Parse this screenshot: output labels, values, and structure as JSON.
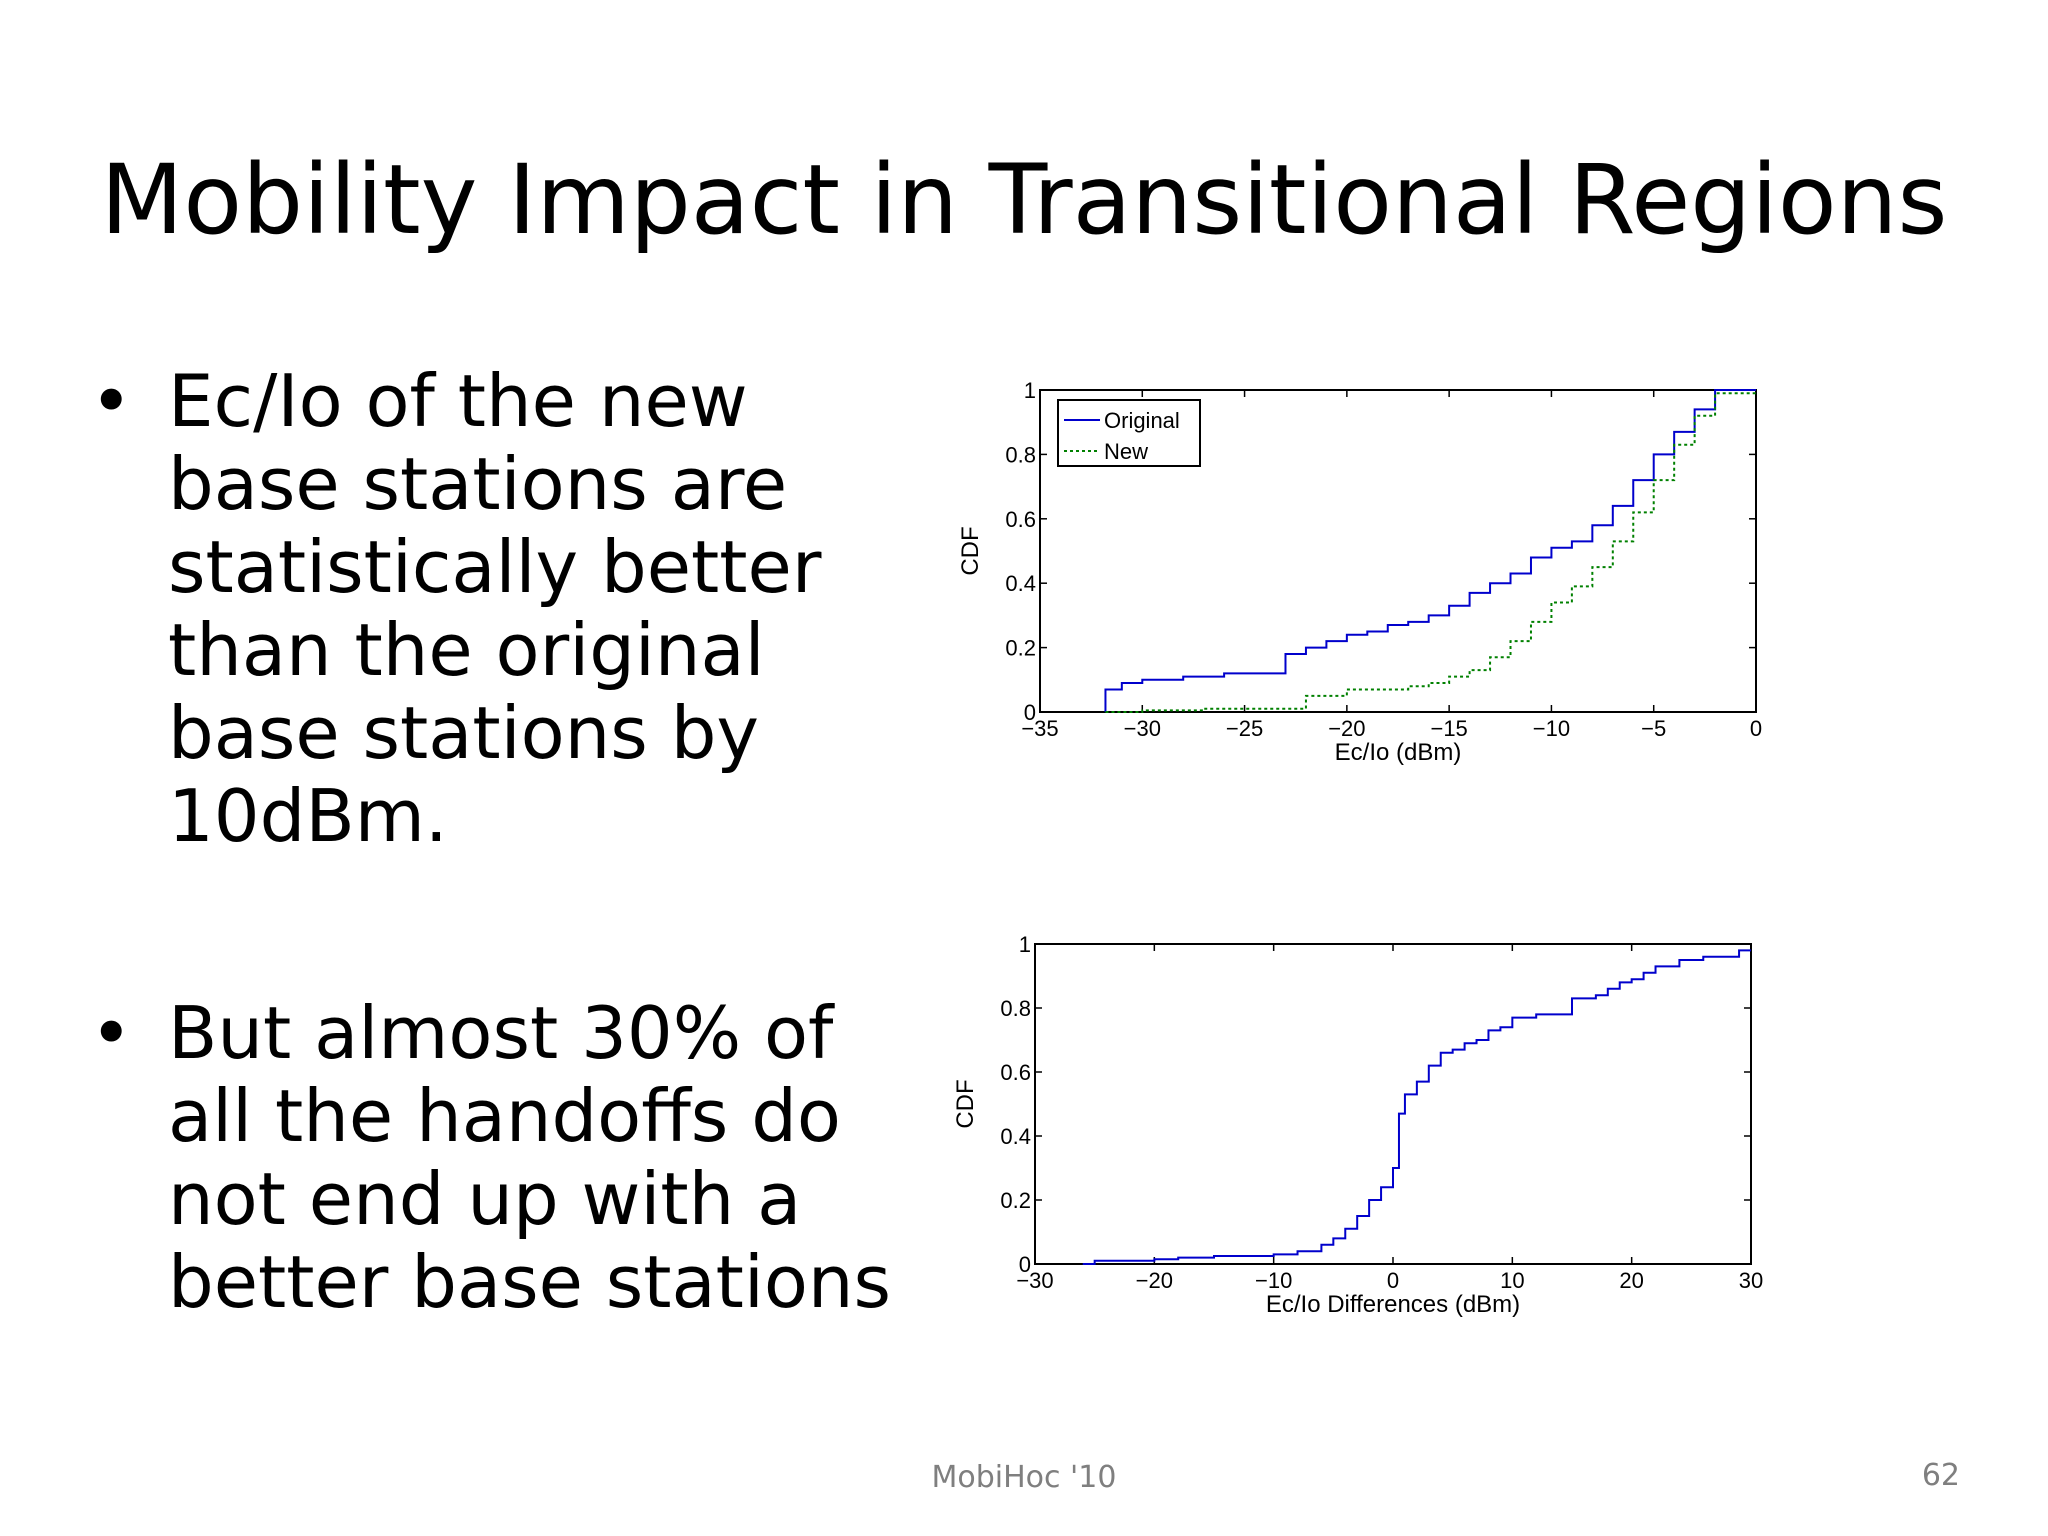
{
  "slide": {
    "title": "Mobility Impact in Transitional Regions",
    "bullets": [
      {
        "symbol": "•",
        "text": "Ec/Io of the new base stations are statistically better than the original base stations by 10dBm."
      },
      {
        "symbol": "•",
        "text": "But almost 30% of all the handoffs do not end up with a better base stations"
      }
    ],
    "footer": {
      "center": "MobiHoc '10",
      "page_number": "62"
    }
  },
  "chart_data": [
    {
      "type": "line",
      "step": true,
      "title": "",
      "xlabel": "Ec/Io (dBm)",
      "ylabel": "CDF",
      "xlim": [
        -35,
        0
      ],
      "ylim": [
        0,
        1
      ],
      "xticks": [
        -35,
        -30,
        -25,
        -20,
        -15,
        -10,
        -5,
        0
      ],
      "xtick_labels": [
        "−35",
        "−30",
        "−25",
        "−20",
        "−15",
        "−10",
        "−5",
        "0"
      ],
      "yticks": [
        0,
        0.2,
        0.4,
        0.6,
        0.8,
        1
      ],
      "ytick_labels": [
        "0",
        "0.2",
        "0.4",
        "0.6",
        "0.8",
        "1"
      ],
      "grid": false,
      "legend": "top-left",
      "series": [
        {
          "name": "Original",
          "color": "#0000cc",
          "style": "solid",
          "x": [
            -31.8,
            -31,
            -30,
            -29,
            -28,
            -27,
            -26,
            -25,
            -24,
            -23,
            -22,
            -21,
            -20,
            -19,
            -18,
            -17,
            -16,
            -15,
            -14,
            -13,
            -12,
            -11,
            -10,
            -9,
            -8,
            -7,
            -6,
            -5,
            -4,
            -3,
            -2,
            0
          ],
          "y": [
            0.07,
            0.09,
            0.1,
            0.1,
            0.11,
            0.11,
            0.12,
            0.12,
            0.12,
            0.18,
            0.2,
            0.22,
            0.24,
            0.25,
            0.27,
            0.28,
            0.3,
            0.33,
            0.37,
            0.4,
            0.43,
            0.48,
            0.51,
            0.53,
            0.58,
            0.64,
            0.72,
            0.8,
            0.87,
            0.94,
            1.0,
            1.0
          ]
        },
        {
          "name": "New",
          "color": "#008000",
          "style": "dotted",
          "x": [
            -31.8,
            -30,
            -27,
            -24,
            -22,
            -20,
            -18,
            -17,
            -16,
            -15,
            -14,
            -13,
            -12,
            -11,
            -10,
            -9,
            -8,
            -7,
            -6,
            -5,
            -4,
            -3,
            -2,
            0
          ],
          "y": [
            0.0,
            0.005,
            0.01,
            0.01,
            0.05,
            0.07,
            0.07,
            0.08,
            0.09,
            0.11,
            0.13,
            0.17,
            0.22,
            0.28,
            0.34,
            0.39,
            0.45,
            0.53,
            0.62,
            0.72,
            0.83,
            0.92,
            0.99,
            0.99
          ]
        }
      ]
    },
    {
      "type": "line",
      "step": true,
      "title": "",
      "xlabel": "Ec/Io Differences (dBm)",
      "ylabel": "CDF",
      "xlim": [
        -30,
        30
      ],
      "ylim": [
        0,
        1
      ],
      "xticks": [
        -30,
        -20,
        -10,
        0,
        10,
        20,
        30
      ],
      "xtick_labels": [
        "−30",
        "−20",
        "−10",
        "0",
        "10",
        "20",
        "30"
      ],
      "yticks": [
        0,
        0.2,
        0.4,
        0.6,
        0.8,
        1
      ],
      "ytick_labels": [
        "0",
        "0.2",
        "0.4",
        "0.6",
        "0.8",
        "1"
      ],
      "grid": false,
      "series": [
        {
          "color": "#0000cc",
          "style": "solid",
          "x": [
            -26,
            -25,
            -20,
            -18,
            -15,
            -10,
            -8,
            -6,
            -5,
            -4,
            -3,
            -2,
            -1,
            0,
            0.5,
            1,
            2,
            3,
            4,
            5,
            6,
            7,
            8,
            9,
            10,
            12,
            15,
            17,
            18,
            19,
            20,
            21,
            22,
            24,
            26,
            29,
            30
          ],
          "y": [
            0.0,
            0.01,
            0.015,
            0.02,
            0.025,
            0.03,
            0.04,
            0.06,
            0.08,
            0.11,
            0.15,
            0.2,
            0.24,
            0.3,
            0.47,
            0.53,
            0.57,
            0.62,
            0.66,
            0.67,
            0.69,
            0.7,
            0.73,
            0.74,
            0.77,
            0.78,
            0.83,
            0.84,
            0.86,
            0.88,
            0.89,
            0.91,
            0.93,
            0.95,
            0.96,
            0.98,
            0.98
          ]
        }
      ]
    }
  ]
}
